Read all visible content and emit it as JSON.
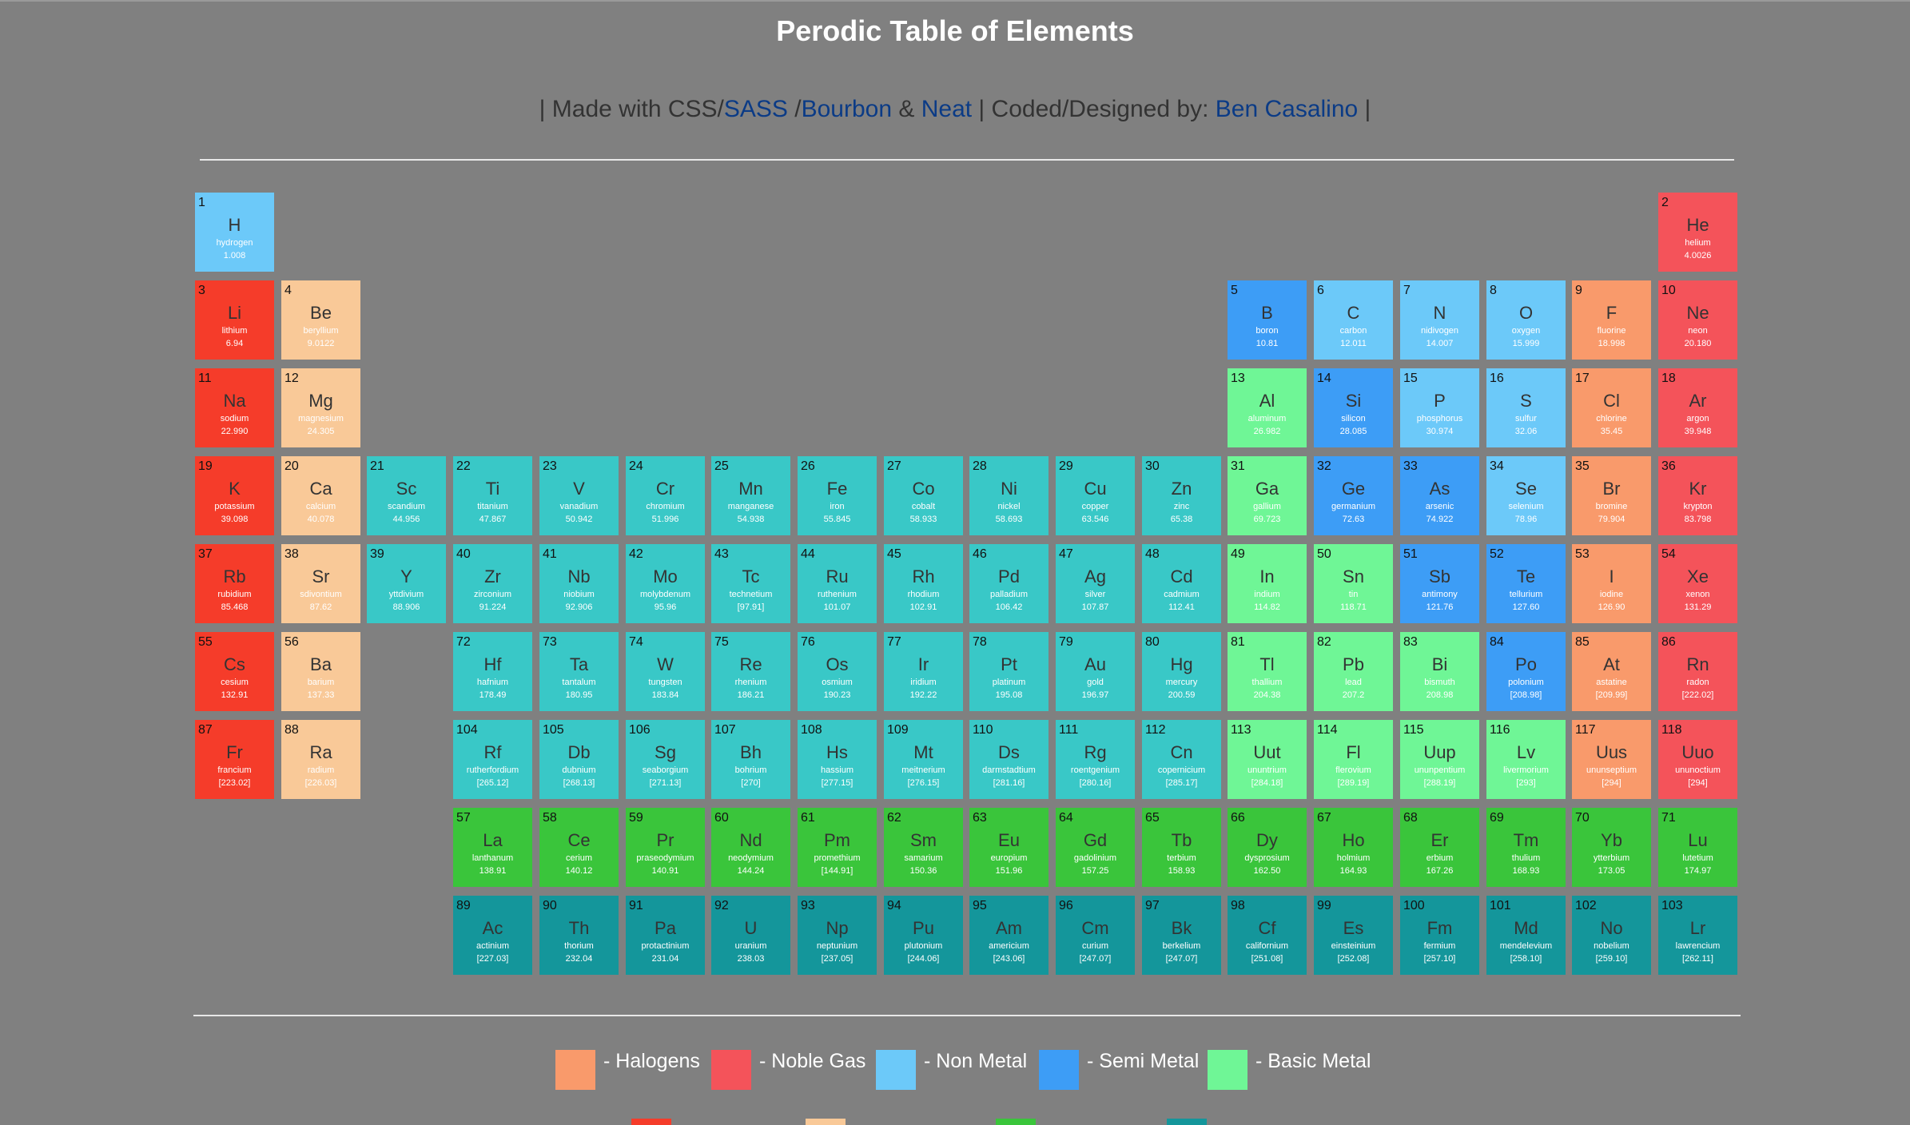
{
  "header": {
    "title": "Perodic Table of Elements",
    "credits": {
      "made_with": "| Made with CSS/",
      "sass": "SASS",
      "slash": " /",
      "bourbon": "Bourbon",
      "amp": " & ",
      "neat": "Neat",
      "coded_by": " | Coded/Designed by: ",
      "author": "Ben Casalino",
      "end": " |"
    }
  },
  "colors": {
    "halogen": "#f99a6b",
    "noble": "#f4535a",
    "nonmetal": "#6cc9f9",
    "semimetal": "#3d9df6",
    "basic": "#6ff696",
    "alkali": "#f53c2a",
    "alkaline": "#f9c998",
    "transition": "#39c8c7",
    "lanthanide": "#3ac53b",
    "actinide": "#14969b"
  },
  "legend": [
    {
      "type": "halogen",
      "label": "- Halogens"
    },
    {
      "type": "noble",
      "label": "- Noble Gas"
    },
    {
      "type": "nonmetal",
      "label": "- Non Metal"
    },
    {
      "type": "semimetal",
      "label": "- Semi Metal"
    },
    {
      "type": "basic",
      "label": "- Basic Metal"
    }
  ],
  "elements": [
    {
      "n": "1",
      "s": "H",
      "name": "hydrogen",
      "m": "1.008",
      "t": "nonmetal",
      "r": 0,
      "c": 0
    },
    {
      "n": "2",
      "s": "He",
      "name": "helium",
      "m": "4.0026",
      "t": "noble",
      "r": 0,
      "c": 17
    },
    {
      "n": "3",
      "s": "Li",
      "name": "lithium",
      "m": "6.94",
      "t": "alkali",
      "r": 1,
      "c": 0
    },
    {
      "n": "4",
      "s": "Be",
      "name": "beryllium",
      "m": "9.0122",
      "t": "alkaline",
      "r": 1,
      "c": 1
    },
    {
      "n": "5",
      "s": "B",
      "name": "boron",
      "m": "10.81",
      "t": "semimetal",
      "r": 1,
      "c": 12
    },
    {
      "n": "6",
      "s": "C",
      "name": "carbon",
      "m": "12.011",
      "t": "nonmetal",
      "r": 1,
      "c": 13
    },
    {
      "n": "7",
      "s": "N",
      "name": "nidivogen",
      "m": "14.007",
      "t": "nonmetal",
      "r": 1,
      "c": 14
    },
    {
      "n": "8",
      "s": "O",
      "name": "oxygen",
      "m": "15.999",
      "t": "nonmetal",
      "r": 1,
      "c": 15
    },
    {
      "n": "9",
      "s": "F",
      "name": "fluorine",
      "m": "18.998",
      "t": "halogen",
      "r": 1,
      "c": 16
    },
    {
      "n": "10",
      "s": "Ne",
      "name": "neon",
      "m": "20.180",
      "t": "noble",
      "r": 1,
      "c": 17
    },
    {
      "n": "11",
      "s": "Na",
      "name": "sodium",
      "m": "22.990",
      "t": "alkali",
      "r": 2,
      "c": 0
    },
    {
      "n": "12",
      "s": "Mg",
      "name": "magnesium",
      "m": "24.305",
      "t": "alkaline",
      "r": 2,
      "c": 1
    },
    {
      "n": "13",
      "s": "Al",
      "name": "aluminum",
      "m": "26.982",
      "t": "basic",
      "r": 2,
      "c": 12
    },
    {
      "n": "14",
      "s": "Si",
      "name": "silicon",
      "m": "28.085",
      "t": "semimetal",
      "r": 2,
      "c": 13
    },
    {
      "n": "15",
      "s": "P",
      "name": "phosphorus",
      "m": "30.974",
      "t": "nonmetal",
      "r": 2,
      "c": 14
    },
    {
      "n": "16",
      "s": "S",
      "name": "sulfur",
      "m": "32.06",
      "t": "nonmetal",
      "r": 2,
      "c": 15
    },
    {
      "n": "17",
      "s": "Cl",
      "name": "chlorine",
      "m": "35.45",
      "t": "halogen",
      "r": 2,
      "c": 16
    },
    {
      "n": "18",
      "s": "Ar",
      "name": "argon",
      "m": "39.948",
      "t": "noble",
      "r": 2,
      "c": 17
    },
    {
      "n": "19",
      "s": "K",
      "name": "potassium",
      "m": "39.098",
      "t": "alkali",
      "r": 3,
      "c": 0
    },
    {
      "n": "20",
      "s": "Ca",
      "name": "calcium",
      "m": "40.078",
      "t": "alkaline",
      "r": 3,
      "c": 1
    },
    {
      "n": "21",
      "s": "Sc",
      "name": "scandium",
      "m": "44.956",
      "t": "transition",
      "r": 3,
      "c": 2
    },
    {
      "n": "22",
      "s": "Ti",
      "name": "titanium",
      "m": "47.867",
      "t": "transition",
      "r": 3,
      "c": 3
    },
    {
      "n": "23",
      "s": "V",
      "name": "vanadium",
      "m": "50.942",
      "t": "transition",
      "r": 3,
      "c": 4
    },
    {
      "n": "24",
      "s": "Cr",
      "name": "chromium",
      "m": "51.996",
      "t": "transition",
      "r": 3,
      "c": 5
    },
    {
      "n": "25",
      "s": "Mn",
      "name": "manganese",
      "m": "54.938",
      "t": "transition",
      "r": 3,
      "c": 6
    },
    {
      "n": "26",
      "s": "Fe",
      "name": "iron",
      "m": "55.845",
      "t": "transition",
      "r": 3,
      "c": 7
    },
    {
      "n": "27",
      "s": "Co",
      "name": "cobalt",
      "m": "58.933",
      "t": "transition",
      "r": 3,
      "c": 8
    },
    {
      "n": "28",
      "s": "Ni",
      "name": "nickel",
      "m": "58.693",
      "t": "transition",
      "r": 3,
      "c": 9
    },
    {
      "n": "29",
      "s": "Cu",
      "name": "copper",
      "m": "63.546",
      "t": "transition",
      "r": 3,
      "c": 10
    },
    {
      "n": "30",
      "s": "Zn",
      "name": "zinc",
      "m": "65.38",
      "t": "transition",
      "r": 3,
      "c": 11
    },
    {
      "n": "31",
      "s": "Ga",
      "name": "gallium",
      "m": "69.723",
      "t": "basic",
      "r": 3,
      "c": 12
    },
    {
      "n": "32",
      "s": "Ge",
      "name": "germanium",
      "m": "72.63",
      "t": "semimetal",
      "r": 3,
      "c": 13
    },
    {
      "n": "33",
      "s": "As",
      "name": "arsenic",
      "m": "74.922",
      "t": "semimetal",
      "r": 3,
      "c": 14
    },
    {
      "n": "34",
      "s": "Se",
      "name": "selenium",
      "m": "78.96",
      "t": "nonmetal",
      "r": 3,
      "c": 15
    },
    {
      "n": "35",
      "s": "Br",
      "name": "bromine",
      "m": "79.904",
      "t": "halogen",
      "r": 3,
      "c": 16
    },
    {
      "n": "36",
      "s": "Kr",
      "name": "krypton",
      "m": "83.798",
      "t": "noble",
      "r": 3,
      "c": 17
    },
    {
      "n": "37",
      "s": "Rb",
      "name": "rubidium",
      "m": "85.468",
      "t": "alkali",
      "r": 4,
      "c": 0
    },
    {
      "n": "38",
      "s": "Sr",
      "name": "sdivontium",
      "m": "87.62",
      "t": "alkaline",
      "r": 4,
      "c": 1
    },
    {
      "n": "39",
      "s": "Y",
      "name": "yttdivium",
      "m": "88.906",
      "t": "transition",
      "r": 4,
      "c": 2
    },
    {
      "n": "40",
      "s": "Zr",
      "name": "zirconium",
      "m": "91.224",
      "t": "transition",
      "r": 4,
      "c": 3
    },
    {
      "n": "41",
      "s": "Nb",
      "name": "niobium",
      "m": "92.906",
      "t": "transition",
      "r": 4,
      "c": 4
    },
    {
      "n": "42",
      "s": "Mo",
      "name": "molybdenum",
      "m": "95.96",
      "t": "transition",
      "r": 4,
      "c": 5
    },
    {
      "n": "43",
      "s": "Tc",
      "name": "technetium",
      "m": "[97.91]",
      "t": "transition",
      "r": 4,
      "c": 6
    },
    {
      "n": "44",
      "s": "Ru",
      "name": "ruthenium",
      "m": "101.07",
      "t": "transition",
      "r": 4,
      "c": 7
    },
    {
      "n": "45",
      "s": "Rh",
      "name": "rhodium",
      "m": "102.91",
      "t": "transition",
      "r": 4,
      "c": 8
    },
    {
      "n": "46",
      "s": "Pd",
      "name": "palladium",
      "m": "106.42",
      "t": "transition",
      "r": 4,
      "c": 9
    },
    {
      "n": "47",
      "s": "Ag",
      "name": "silver",
      "m": "107.87",
      "t": "transition",
      "r": 4,
      "c": 10
    },
    {
      "n": "48",
      "s": "Cd",
      "name": "cadmium",
      "m": "112.41",
      "t": "transition",
      "r": 4,
      "c": 11
    },
    {
      "n": "49",
      "s": "In",
      "name": "indium",
      "m": "114.82",
      "t": "basic",
      "r": 4,
      "c": 12
    },
    {
      "n": "50",
      "s": "Sn",
      "name": "tin",
      "m": "118.71",
      "t": "basic",
      "r": 4,
      "c": 13
    },
    {
      "n": "51",
      "s": "Sb",
      "name": "antimony",
      "m": "121.76",
      "t": "semimetal",
      "r": 4,
      "c": 14
    },
    {
      "n": "52",
      "s": "Te",
      "name": "tellurium",
      "m": "127.60",
      "t": "semimetal",
      "r": 4,
      "c": 15
    },
    {
      "n": "53",
      "s": "I",
      "name": "iodine",
      "m": "126.90",
      "t": "halogen",
      "r": 4,
      "c": 16
    },
    {
      "n": "54",
      "s": "Xe",
      "name": "xenon",
      "m": "131.29",
      "t": "noble",
      "r": 4,
      "c": 17
    },
    {
      "n": "55",
      "s": "Cs",
      "name": "cesium",
      "m": "132.91",
      "t": "alkali",
      "r": 5,
      "c": 0
    },
    {
      "n": "56",
      "s": "Ba",
      "name": "barium",
      "m": "137.33",
      "t": "alkaline",
      "r": 5,
      "c": 1
    },
    {
      "n": "72",
      "s": "Hf",
      "name": "hafnium",
      "m": "178.49",
      "t": "transition",
      "r": 5,
      "c": 3
    },
    {
      "n": "73",
      "s": "Ta",
      "name": "tantalum",
      "m": "180.95",
      "t": "transition",
      "r": 5,
      "c": 4
    },
    {
      "n": "74",
      "s": "W",
      "name": "tungsten",
      "m": "183.84",
      "t": "transition",
      "r": 5,
      "c": 5
    },
    {
      "n": "75",
      "s": "Re",
      "name": "rhenium",
      "m": "186.21",
      "t": "transition",
      "r": 5,
      "c": 6
    },
    {
      "n": "76",
      "s": "Os",
      "name": "osmium",
      "m": "190.23",
      "t": "transition",
      "r": 5,
      "c": 7
    },
    {
      "n": "77",
      "s": "Ir",
      "name": "iridium",
      "m": "192.22",
      "t": "transition",
      "r": 5,
      "c": 8
    },
    {
      "n": "78",
      "s": "Pt",
      "name": "platinum",
      "m": "195.08",
      "t": "transition",
      "r": 5,
      "c": 9
    },
    {
      "n": "79",
      "s": "Au",
      "name": "gold",
      "m": "196.97",
      "t": "transition",
      "r": 5,
      "c": 10
    },
    {
      "n": "80",
      "s": "Hg",
      "name": "mercury",
      "m": "200.59",
      "t": "transition",
      "r": 5,
      "c": 11
    },
    {
      "n": "81",
      "s": "Tl",
      "name": "thallium",
      "m": "204.38",
      "t": "basic",
      "r": 5,
      "c": 12
    },
    {
      "n": "82",
      "s": "Pb",
      "name": "lead",
      "m": "207.2",
      "t": "basic",
      "r": 5,
      "c": 13
    },
    {
      "n": "83",
      "s": "Bi",
      "name": "bismuth",
      "m": "208.98",
      "t": "basic",
      "r": 5,
      "c": 14
    },
    {
      "n": "84",
      "s": "Po",
      "name": "polonium",
      "m": "[208.98]",
      "t": "semimetal",
      "r": 5,
      "c": 15
    },
    {
      "n": "85",
      "s": "At",
      "name": "astatine",
      "m": "[209.99]",
      "t": "halogen",
      "r": 5,
      "c": 16
    },
    {
      "n": "86",
      "s": "Rn",
      "name": "radon",
      "m": "[222.02]",
      "t": "noble",
      "r": 5,
      "c": 17
    },
    {
      "n": "87",
      "s": "Fr",
      "name": "francium",
      "m": "[223.02]",
      "t": "alkali",
      "r": 6,
      "c": 0
    },
    {
      "n": "88",
      "s": "Ra",
      "name": "radium",
      "m": "[226.03]",
      "t": "alkaline",
      "r": 6,
      "c": 1
    },
    {
      "n": "104",
      "s": "Rf",
      "name": "rutherfordium",
      "m": "[265.12]",
      "t": "transition",
      "r": 6,
      "c": 3
    },
    {
      "n": "105",
      "s": "Db",
      "name": "dubnium",
      "m": "[268.13]",
      "t": "transition",
      "r": 6,
      "c": 4
    },
    {
      "n": "106",
      "s": "Sg",
      "name": "seaborgium",
      "m": "[271.13]",
      "t": "transition",
      "r": 6,
      "c": 5
    },
    {
      "n": "107",
      "s": "Bh",
      "name": "bohrium",
      "m": "[270]",
      "t": "transition",
      "r": 6,
      "c": 6
    },
    {
      "n": "108",
      "s": "Hs",
      "name": "hassium",
      "m": "[277.15]",
      "t": "transition",
      "r": 6,
      "c": 7
    },
    {
      "n": "109",
      "s": "Mt",
      "name": "meitnerium",
      "m": "[276.15]",
      "t": "transition",
      "r": 6,
      "c": 8
    },
    {
      "n": "110",
      "s": "Ds",
      "name": "darmstadtium",
      "m": "[281.16]",
      "t": "transition",
      "r": 6,
      "c": 9
    },
    {
      "n": "111",
      "s": "Rg",
      "name": "roentgenium",
      "m": "[280.16]",
      "t": "transition",
      "r": 6,
      "c": 10
    },
    {
      "n": "112",
      "s": "Cn",
      "name": "copernicium",
      "m": "[285.17]",
      "t": "transition",
      "r": 6,
      "c": 11
    },
    {
      "n": "113",
      "s": "Uut",
      "name": "ununtrium",
      "m": "[284.18]",
      "t": "basic",
      "r": 6,
      "c": 12
    },
    {
      "n": "114",
      "s": "Fl",
      "name": "flerovium",
      "m": "[289.19]",
      "t": "basic",
      "r": 6,
      "c": 13
    },
    {
      "n": "115",
      "s": "Uup",
      "name": "ununpentium",
      "m": "[288.19]",
      "t": "basic",
      "r": 6,
      "c": 14
    },
    {
      "n": "116",
      "s": "Lv",
      "name": "livermorium",
      "m": "[293]",
      "t": "basic",
      "r": 6,
      "c": 15
    },
    {
      "n": "117",
      "s": "Uus",
      "name": "ununseptium",
      "m": "[294]",
      "t": "halogen",
      "r": 6,
      "c": 16
    },
    {
      "n": "118",
      "s": "Uuo",
      "name": "ununoctium",
      "m": "[294]",
      "t": "noble",
      "r": 6,
      "c": 17
    },
    {
      "n": "57",
      "s": "La",
      "name": "lanthanum",
      "m": "138.91",
      "t": "lanthanide",
      "r": 7,
      "c": 3
    },
    {
      "n": "58",
      "s": "Ce",
      "name": "cerium",
      "m": "140.12",
      "t": "lanthanide",
      "r": 7,
      "c": 4
    },
    {
      "n": "59",
      "s": "Pr",
      "name": "praseodymium",
      "m": "140.91",
      "t": "lanthanide",
      "r": 7,
      "c": 5
    },
    {
      "n": "60",
      "s": "Nd",
      "name": "neodymium",
      "m": "144.24",
      "t": "lanthanide",
      "r": 7,
      "c": 6
    },
    {
      "n": "61",
      "s": "Pm",
      "name": "promethium",
      "m": "[144.91]",
      "t": "lanthanide",
      "r": 7,
      "c": 7
    },
    {
      "n": "62",
      "s": "Sm",
      "name": "samarium",
      "m": "150.36",
      "t": "lanthanide",
      "r": 7,
      "c": 8
    },
    {
      "n": "63",
      "s": "Eu",
      "name": "europium",
      "m": "151.96",
      "t": "lanthanide",
      "r": 7,
      "c": 9
    },
    {
      "n": "64",
      "s": "Gd",
      "name": "gadolinium",
      "m": "157.25",
      "t": "lanthanide",
      "r": 7,
      "c": 10
    },
    {
      "n": "65",
      "s": "Tb",
      "name": "terbium",
      "m": "158.93",
      "t": "lanthanide",
      "r": 7,
      "c": 11
    },
    {
      "n": "66",
      "s": "Dy",
      "name": "dysprosium",
      "m": "162.50",
      "t": "lanthanide",
      "r": 7,
      "c": 12
    },
    {
      "n": "67",
      "s": "Ho",
      "name": "holmium",
      "m": "164.93",
      "t": "lanthanide",
      "r": 7,
      "c": 13
    },
    {
      "n": "68",
      "s": "Er",
      "name": "erbium",
      "m": "167.26",
      "t": "lanthanide",
      "r": 7,
      "c": 14
    },
    {
      "n": "69",
      "s": "Tm",
      "name": "thulium",
      "m": "168.93",
      "t": "lanthanide",
      "r": 7,
      "c": 15
    },
    {
      "n": "70",
      "s": "Yb",
      "name": "ytterbium",
      "m": "173.05",
      "t": "lanthanide",
      "r": 7,
      "c": 16
    },
    {
      "n": "71",
      "s": "Lu",
      "name": "lutetium",
      "m": "174.97",
      "t": "lanthanide",
      "r": 7,
      "c": 17
    },
    {
      "n": "89",
      "s": "Ac",
      "name": "actinium",
      "m": "[227.03]",
      "t": "actinide",
      "r": 8,
      "c": 3
    },
    {
      "n": "90",
      "s": "Th",
      "name": "thorium",
      "m": "232.04",
      "t": "actinide",
      "r": 8,
      "c": 4
    },
    {
      "n": "91",
      "s": "Pa",
      "name": "protactinium",
      "m": "231.04",
      "t": "actinide",
      "r": 8,
      "c": 5
    },
    {
      "n": "92",
      "s": "U",
      "name": "uranium",
      "m": "238.03",
      "t": "actinide",
      "r": 8,
      "c": 6
    },
    {
      "n": "93",
      "s": "Np",
      "name": "neptunium",
      "m": "[237.05]",
      "t": "actinide",
      "r": 8,
      "c": 7
    },
    {
      "n": "94",
      "s": "Pu",
      "name": "plutonium",
      "m": "[244.06]",
      "t": "actinide",
      "r": 8,
      "c": 8
    },
    {
      "n": "95",
      "s": "Am",
      "name": "americium",
      "m": "[243.06]",
      "t": "actinide",
      "r": 8,
      "c": 9
    },
    {
      "n": "96",
      "s": "Cm",
      "name": "curium",
      "m": "[247.07]",
      "t": "actinide",
      "r": 8,
      "c": 10
    },
    {
      "n": "97",
      "s": "Bk",
      "name": "berkelium",
      "m": "[247.07]",
      "t": "actinide",
      "r": 8,
      "c": 11
    },
    {
      "n": "98",
      "s": "Cf",
      "name": "californium",
      "m": "[251.08]",
      "t": "actinide",
      "r": 8,
      "c": 12
    },
    {
      "n": "99",
      "s": "Es",
      "name": "einsteinium",
      "m": "[252.08]",
      "t": "actinide",
      "r": 8,
      "c": 13
    },
    {
      "n": "100",
      "s": "Fm",
      "name": "fermium",
      "m": "[257.10]",
      "t": "actinide",
      "r": 8,
      "c": 14
    },
    {
      "n": "101",
      "s": "Md",
      "name": "mendelevium",
      "m": "[258.10]",
      "t": "actinide",
      "r": 8,
      "c": 15
    },
    {
      "n": "102",
      "s": "No",
      "name": "nobelium",
      "m": "[259.10]",
      "t": "actinide",
      "r": 8,
      "c": 16
    },
    {
      "n": "103",
      "s": "Lr",
      "name": "lawrencium",
      "m": "[262.11]",
      "t": "actinide",
      "r": 8,
      "c": 17
    }
  ]
}
